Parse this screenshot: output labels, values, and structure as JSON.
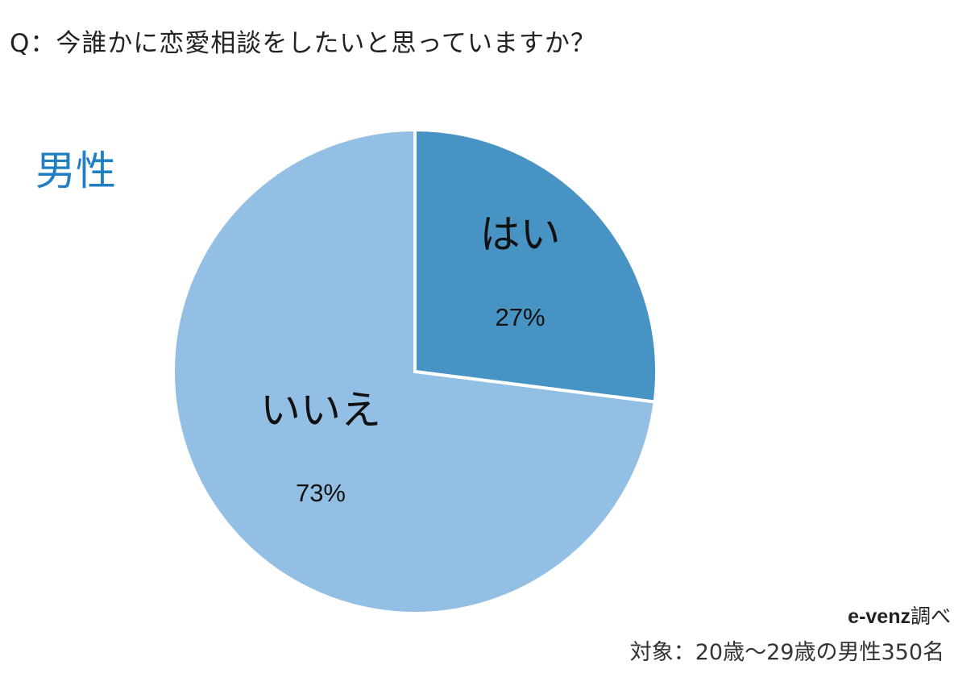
{
  "question": "Q：今誰かに恋愛相談をしたいと思っていますか？",
  "group_label": "男性",
  "chart_data": {
    "type": "pie",
    "start_angle_deg": 0,
    "direction": "clockwise",
    "slices": [
      {
        "label": "はい",
        "value": 27,
        "display": "27%",
        "color": "#4693c4"
      },
      {
        "label": "いいえ",
        "value": 73,
        "display": "73%",
        "color": "#93bfe5"
      }
    ],
    "slice_border_color": "#ffffff"
  },
  "source": {
    "brand": "e-venz",
    "suffix": "調べ"
  },
  "target": "対象：20歳〜29歳の男性350名"
}
